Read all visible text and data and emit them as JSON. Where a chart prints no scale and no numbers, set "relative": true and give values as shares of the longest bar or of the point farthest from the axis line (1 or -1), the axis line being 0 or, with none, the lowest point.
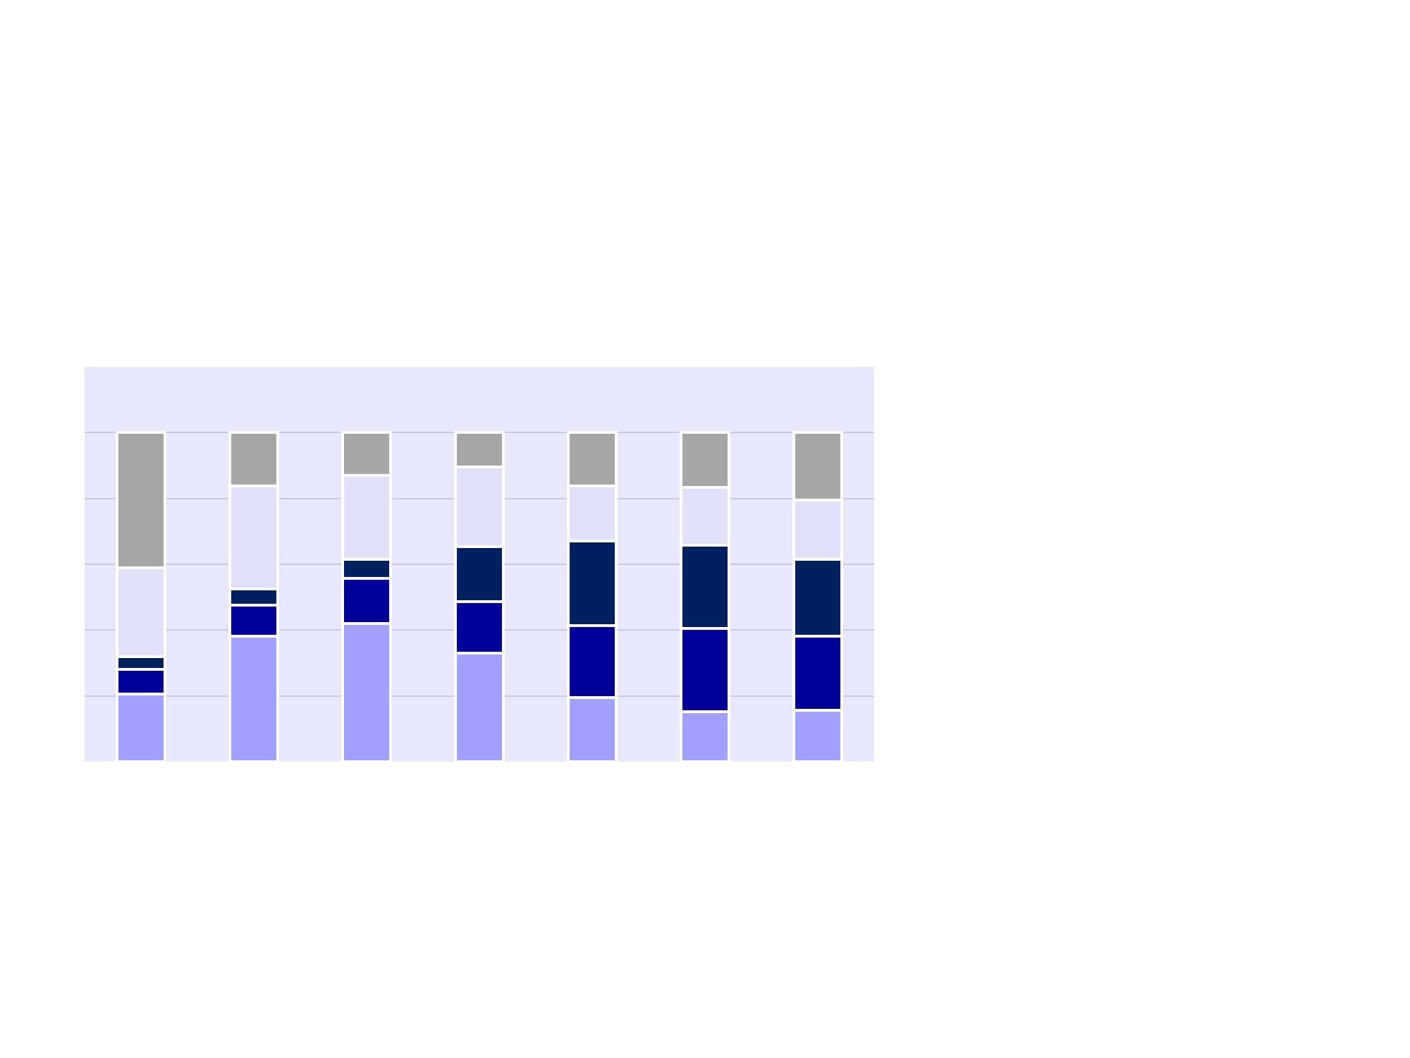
{
  "chart_data": {
    "type": "bar",
    "stacked": true,
    "relative": true,
    "grid": "y",
    "categories": [
      null,
      null,
      null,
      null,
      null,
      null,
      null
    ],
    "series": [
      {
        "color": "#a0a0ff",
        "values": [
          0.205,
          0.381,
          0.419,
          0.329,
          0.195,
          0.152,
          0.157
        ]
      },
      {
        "color": "#000099",
        "values": [
          0.076,
          0.095,
          0.138,
          0.157,
          0.219,
          0.252,
          0.224
        ]
      },
      {
        "color": "#00205f",
        "values": [
          0.038,
          0.048,
          0.057,
          0.167,
          0.257,
          0.253,
          0.233
        ]
      },
      {
        "color": "#e0e0fa",
        "values": [
          0.271,
          0.314,
          0.257,
          0.243,
          0.167,
          0.176,
          0.181
        ]
      },
      {
        "color": "#a6a6a6",
        "values": [
          0.41,
          0.162,
          0.129,
          0.104,
          0.162,
          0.167,
          0.205
        ]
      }
    ]
  }
}
